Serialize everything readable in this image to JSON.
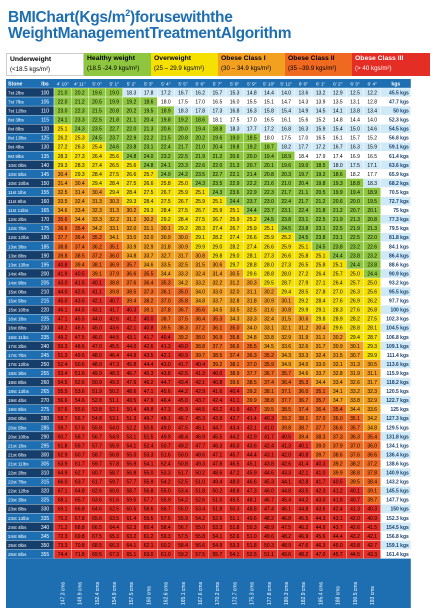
{
  "title": {
    "line1": "BMIChart(Kgs/m",
    "sup": "2",
    "line1_rest": ")forusewiththe",
    "line2": "WeightManagementTreatmentAlgorithm"
  },
  "legend": [
    {
      "name": "Underweight",
      "range": "(<18.5 kgs/m²)",
      "color": "#ffffff"
    },
    {
      "name": "Healthy weight",
      "range": "(18.5 -24.9 kgs/m²)",
      "color": "#8fc63f"
    },
    {
      "name": "Overweight",
      "range": "(25 – 29.9 kgs/m²)",
      "color": "#f6e000"
    },
    {
      "name": "Obese Class I",
      "range": "(30 – 34.9 kgs/m²)",
      "color": "#f3a020"
    },
    {
      "name": "Obese Class II",
      "range": "(35 –39.9 kgs/m²)",
      "color": "#ef6a20"
    },
    {
      "name": "Obese Class III",
      "range": "(> 40 kgs/m²)",
      "color": "#e42d25"
    }
  ],
  "colors": {
    "header_blue": "#1e6fb2",
    "row_dark": "#163e6b",
    "cell_under_a": "#cfe9f7",
    "cell_under_b": "#ffffff"
  },
  "chart_data": {
    "type": "table",
    "header": {
      "stone": "Stone",
      "lbs": "lbs",
      "kgs": "kgs"
    },
    "heights_ft": [
      "4' 10\"",
      "4' 11\"",
      "5' 0\"",
      "5' 1\"",
      "5' 2\"",
      "5' 3\"",
      "5' 4\"",
      "5' 5\"",
      "5' 6\"",
      "5' 7\"",
      "5' 8\"",
      "5' 9\"",
      "5' 10\"",
      "5' 11\"",
      "6' 0\"",
      "6' 1\"",
      "6' 2\"",
      "6' 3\"",
      "6' 4\""
    ],
    "heights_cm": [
      "147.3 cms",
      "149.9 cms",
      "152.4 cms",
      "154.9 cms",
      "157.5 cms",
      "160 cms",
      "162.6 cms",
      "165.1 cms",
      "167.6 cms",
      "170.2 cms",
      "172.7 cms",
      "175.3 cms",
      "177.8 cms",
      "180.3 cms",
      "182.9 cms",
      "185.4 cms",
      "188 cms",
      "190.5 cms",
      "193 cms"
    ],
    "heights_m": [
      1.473,
      1.499,
      1.524,
      1.549,
      1.575,
      1.6,
      1.626,
      1.651,
      1.676,
      1.702,
      1.727,
      1.753,
      1.778,
      1.803,
      1.829,
      1.854,
      1.88,
      1.905,
      1.93
    ],
    "stone": [
      "7st 2lbs",
      "7st 7lbs",
      "7st 12lbs",
      "8st 3lbs",
      "8st 8lbs",
      "8st 13lbs",
      "9st 4lbs",
      "9st 9lbs",
      "10st 0lbs",
      "10st 5lbs",
      "10st 10lbs",
      "11st 1lbs",
      "11st 6lbs",
      "11st 11lbs",
      "12st 2lbs",
      "12st 7lbs",
      "12st 12lbs",
      "13st 3lbs",
      "13st 8lbs",
      "13st 13lbs",
      "14st 4lbs",
      "14st 9lbs",
      "15st 0lbs",
      "15st 5lbs",
      "15st 10lbs",
      "16st 1lbs",
      "16st 6lbs",
      "16st 11lbs",
      "17st 2lbs",
      "17st 7lbs",
      "17st 12lbs",
      "18st 3lbs",
      "18st 8lbs",
      "18st 13lbs",
      "19st 4lbs",
      "19st 9lbs",
      "20st 0lbs",
      "20st 5lbs",
      "20st 10lbs",
      "21st 1lbs",
      "21st 6lbs",
      "21st 11lbs",
      "22st 2lbs",
      "22st 7lbs",
      "22st 12lbs",
      "23st 3lbs",
      "23st 8lbs",
      "23st 13lbs",
      "24st 4lbs",
      "24st 9lbs",
      "25st 0lbs",
      "25st 5lbs"
    ],
    "lbs": [
      100,
      105,
      110,
      115,
      120,
      125,
      130,
      135,
      140,
      145,
      150,
      155,
      160,
      165,
      170,
      175,
      180,
      185,
      190,
      195,
      200,
      205,
      210,
      215,
      220,
      225,
      230,
      235,
      240,
      245,
      250,
      255,
      260,
      265,
      270,
      275,
      280,
      285,
      290,
      295,
      300,
      305,
      310,
      315,
      320,
      325,
      330,
      335,
      340,
      345,
      350,
      355
    ],
    "kgs": [
      "45.5 kgs",
      "47.7 kgs",
      "50 kgs",
      "52.3 kgs",
      "54.5 kgs",
      "56.8 kgs",
      "59.1 kgs",
      "61.4 kgs",
      "63.6 kgs",
      "65.9 kgs",
      "68.2 kgs",
      "70.5 kgs",
      "72.7 kgs",
      "75 kgs",
      "77.3 kgs",
      "79.5 kgs",
      "81.8 kgs",
      "84.1 kgs",
      "86.4 kgs",
      "88.6 kgs",
      "90.9 kgs",
      "93.2 kgs",
      "95.5 kgs",
      "97.7 kgs",
      "100 kgs",
      "102.3 kgs",
      "104.5 kgs",
      "106.8 kgs",
      "109.1 kgs",
      "111.4 kgs",
      "113.6 kgs",
      "115.9 kgs",
      "118.2 kgs",
      "120.5 kgs",
      "122.7 kgs",
      "125 kgs",
      "127.3 kgs",
      "129.5 kgs",
      "131.8 kgs",
      "134.1 kgs",
      "136.4 kgs",
      "138.6 kgs",
      "140.9 kgs",
      "143.2 kgs",
      "145.5 kgs",
      "147.7 kgs",
      "150 kgs",
      "152.3 kgs",
      "154.5 kgs",
      "156.8 kgs",
      "159.1 kgs",
      "161.4 kgs"
    ],
    "kgs_values": [
      45.5,
      47.7,
      50,
      52.3,
      54.5,
      56.8,
      59.1,
      61.4,
      63.6,
      65.9,
      68.2,
      70.5,
      72.7,
      75,
      77.3,
      79.5,
      81.8,
      84.1,
      86.4,
      88.6,
      90.9,
      93.2,
      95.5,
      97.7,
      100,
      102.3,
      104.5,
      106.8,
      109.1,
      111.4,
      113.6,
      115.9,
      118.2,
      120.5,
      122.7,
      125,
      127.3,
      129.5,
      131.8,
      134.1,
      136.4,
      138.6,
      140.9,
      143.2,
      145.5,
      147.7,
      150,
      152.3,
      154.5,
      156.8,
      159.1,
      161.4
    ],
    "bmi_formula": "kgs / (m^2), rounded to 0.1",
    "bmi_first_row": [
      20.9,
      20.2,
      19.6,
      18.9,
      18.3,
      17.7,
      17.2,
      16.7,
      16.2,
      15.7,
      15.2,
      14.8,
      14.4,
      14.0,
      13.6,
      13.2,
      12.9,
      12.5,
      12.2
    ],
    "bmi_last_row": [
      74.4,
      71.9,
      69.5,
      67.3,
      65.1,
      63.0,
      61.0,
      59.2,
      57.5,
      55.7,
      54.1,
      52.5,
      51.1,
      49.7,
      48.2,
      47.0,
      45.7,
      44.5,
      43.3
    ]
  }
}
